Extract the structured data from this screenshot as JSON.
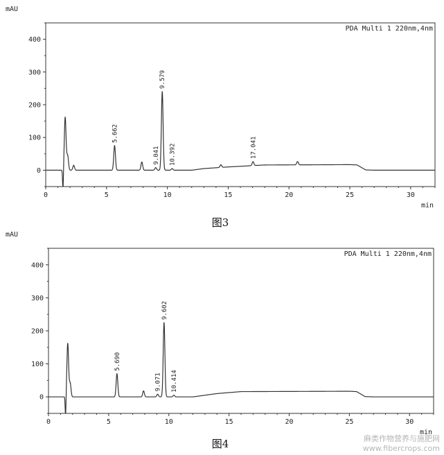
{
  "chart_data": [
    {
      "type": "line",
      "caption": "图3",
      "header": "PDA Multi 1 220nm,4nm",
      "ylabel": "mAU",
      "xlabel": "min",
      "xlim": [
        0,
        32
      ],
      "ylim": [
        -50,
        450
      ],
      "xticks": [
        "0",
        "5",
        "10",
        "15",
        "20",
        "25",
        "30"
      ],
      "yticks": [
        "0",
        "100",
        "200",
        "300",
        "400"
      ],
      "peaks": [
        {
          "rt": 1.6,
          "height": 162,
          "label": ""
        },
        {
          "rt": 1.8,
          "height": 45,
          "label": ""
        },
        {
          "rt": 2.3,
          "height": 15,
          "label": ""
        },
        {
          "rt": 5.662,
          "height": 75,
          "label": "5.662"
        },
        {
          "rt": 7.9,
          "height": 25,
          "label": ""
        },
        {
          "rt": 9.041,
          "height": 8,
          "label": "9.041"
        },
        {
          "rt": 9.579,
          "height": 240,
          "label": "9.579"
        },
        {
          "rt": 10.392,
          "height": 5,
          "label": "10.392"
        },
        {
          "rt": 14.4,
          "height": 8,
          "label": ""
        },
        {
          "rt": 17.041,
          "height": 12,
          "label": "17.041"
        },
        {
          "rt": 20.7,
          "height": 10,
          "label": ""
        }
      ],
      "baseline": [
        [
          0,
          0
        ],
        [
          12,
          0
        ],
        [
          13,
          5
        ],
        [
          15,
          10
        ],
        [
          18,
          16
        ],
        [
          25,
          17
        ],
        [
          25.6,
          16
        ],
        [
          26.3,
          1
        ],
        [
          27,
          0
        ],
        [
          32,
          0
        ]
      ]
    },
    {
      "type": "line",
      "caption": "图4",
      "header": "PDA Multi 1 220nm,4nm",
      "ylabel": "mAU",
      "xlabel": "min",
      "xlim": [
        0,
        32
      ],
      "ylim": [
        -50,
        450
      ],
      "xticks": [
        "0",
        "5",
        "10",
        "15",
        "20",
        "25",
        "30"
      ],
      "yticks": [
        "0",
        "100",
        "200",
        "300",
        "400"
      ],
      "peaks": [
        {
          "rt": 1.6,
          "height": 162,
          "label": ""
        },
        {
          "rt": 1.8,
          "height": 42,
          "label": ""
        },
        {
          "rt": 5.69,
          "height": 70,
          "label": "5.690"
        },
        {
          "rt": 7.9,
          "height": 18,
          "label": ""
        },
        {
          "rt": 9.071,
          "height": 8,
          "label": "9.071"
        },
        {
          "rt": 9.602,
          "height": 225,
          "label": "9.602"
        },
        {
          "rt": 10.414,
          "height": 5,
          "label": "10.414"
        }
      ],
      "baseline": [
        [
          0,
          0
        ],
        [
          12,
          0
        ],
        [
          14,
          10
        ],
        [
          16,
          16
        ],
        [
          25,
          17
        ],
        [
          25.6,
          16
        ],
        [
          26.3,
          1
        ],
        [
          27,
          0
        ],
        [
          32,
          0
        ]
      ]
    }
  ],
  "watermark": {
    "line1": "麻类作物营养与施肥网",
    "line2": "www.fibercrops.com"
  }
}
